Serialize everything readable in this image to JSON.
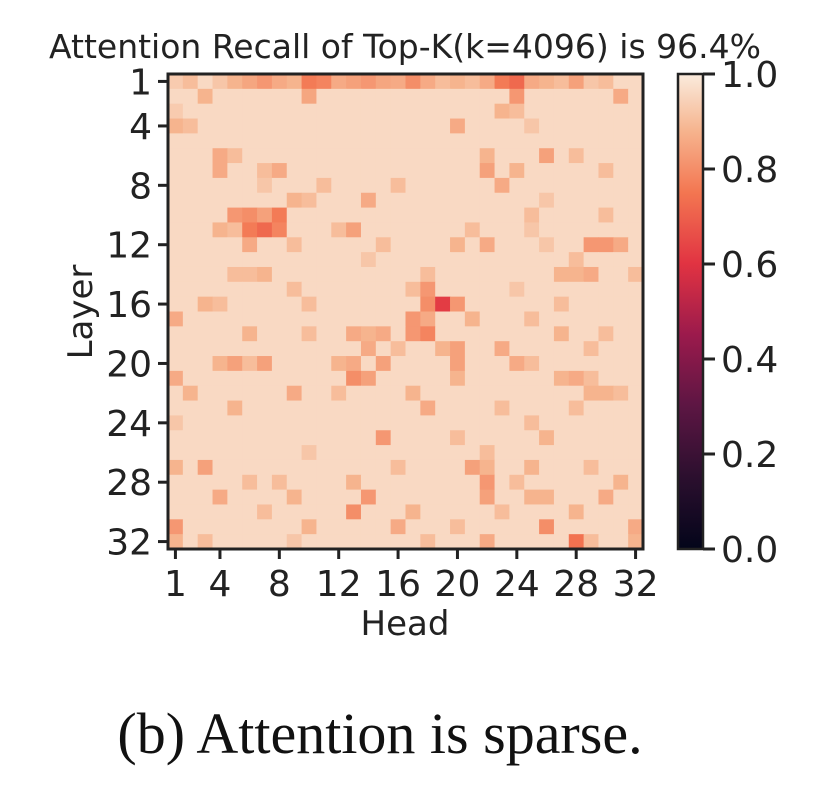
{
  "chart_data": {
    "type": "heatmap",
    "title": "Attention Recall of Top-K(k=4096) is 96.4%",
    "xlabel": "Head",
    "ylabel": "Layer",
    "x_ticks": [
      "1",
      "4",
      "8",
      "12",
      "16",
      "20",
      "24",
      "28",
      "32"
    ],
    "y_ticks": [
      "1",
      "4",
      "8",
      "12",
      "16",
      "20",
      "24",
      "28",
      "32"
    ],
    "colorbar": {
      "min": 0.0,
      "max": 1.0,
      "ticks": [
        "0.0",
        "0.2",
        "0.4",
        "0.6",
        "0.8",
        "1.0"
      ],
      "colormap": "rocket"
    },
    "n_rows": 32,
    "n_cols": 32,
    "default_value": 0.96,
    "overall_recall": 0.964,
    "cells": [
      [
        1,
        1,
        0.93
      ],
      [
        1,
        2,
        0.9
      ],
      [
        1,
        4,
        0.92
      ],
      [
        1,
        5,
        0.88
      ],
      [
        1,
        6,
        0.85
      ],
      [
        1,
        7,
        0.82
      ],
      [
        1,
        8,
        0.86
      ],
      [
        1,
        9,
        0.88
      ],
      [
        1,
        10,
        0.76
      ],
      [
        1,
        11,
        0.78
      ],
      [
        1,
        12,
        0.86
      ],
      [
        1,
        13,
        0.84
      ],
      [
        1,
        14,
        0.82
      ],
      [
        1,
        15,
        0.85
      ],
      [
        1,
        16,
        0.86
      ],
      [
        1,
        17,
        0.8
      ],
      [
        1,
        18,
        0.86
      ],
      [
        1,
        19,
        0.9
      ],
      [
        1,
        20,
        0.88
      ],
      [
        1,
        21,
        0.9
      ],
      [
        1,
        22,
        0.86
      ],
      [
        1,
        23,
        0.76
      ],
      [
        1,
        24,
        0.72
      ],
      [
        1,
        25,
        0.86
      ],
      [
        1,
        26,
        0.88
      ],
      [
        1,
        27,
        0.9
      ],
      [
        1,
        28,
        0.84
      ],
      [
        1,
        29,
        0.92
      ],
      [
        1,
        30,
        0.9
      ],
      [
        2,
        3,
        0.88
      ],
      [
        2,
        10,
        0.85
      ],
      [
        2,
        24,
        0.82
      ],
      [
        2,
        31,
        0.86
      ],
      [
        3,
        23,
        0.88
      ],
      [
        3,
        24,
        0.9
      ],
      [
        3,
        1,
        0.93
      ],
      [
        4,
        1,
        0.88
      ],
      [
        4,
        2,
        0.9
      ],
      [
        4,
        20,
        0.86
      ],
      [
        4,
        25,
        0.92
      ],
      [
        6,
        4,
        0.86
      ],
      [
        6,
        5,
        0.9
      ],
      [
        6,
        22,
        0.88
      ],
      [
        6,
        26,
        0.84
      ],
      [
        6,
        28,
        0.9
      ],
      [
        7,
        4,
        0.86
      ],
      [
        7,
        7,
        0.9
      ],
      [
        7,
        8,
        0.86
      ],
      [
        7,
        22,
        0.84
      ],
      [
        7,
        24,
        0.88
      ],
      [
        7,
        30,
        0.9
      ],
      [
        8,
        7,
        0.92
      ],
      [
        8,
        11,
        0.9
      ],
      [
        8,
        16,
        0.9
      ],
      [
        8,
        23,
        0.86
      ],
      [
        9,
        9,
        0.88
      ],
      [
        9,
        10,
        0.9
      ],
      [
        9,
        14,
        0.86
      ],
      [
        9,
        26,
        0.92
      ],
      [
        10,
        5,
        0.82
      ],
      [
        10,
        6,
        0.8
      ],
      [
        10,
        7,
        0.84
      ],
      [
        10,
        8,
        0.76
      ],
      [
        10,
        25,
        0.9
      ],
      [
        10,
        30,
        0.9
      ],
      [
        11,
        4,
        0.88
      ],
      [
        11,
        5,
        0.9
      ],
      [
        11,
        6,
        0.76
      ],
      [
        11,
        7,
        0.72
      ],
      [
        11,
        8,
        0.78
      ],
      [
        11,
        12,
        0.9
      ],
      [
        11,
        13,
        0.84
      ],
      [
        11,
        21,
        0.9
      ],
      [
        11,
        25,
        0.92
      ],
      [
        12,
        6,
        0.86
      ],
      [
        12,
        9,
        0.9
      ],
      [
        12,
        15,
        0.9
      ],
      [
        12,
        20,
        0.88
      ],
      [
        12,
        22,
        0.86
      ],
      [
        12,
        26,
        0.92
      ],
      [
        12,
        29,
        0.82
      ],
      [
        12,
        30,
        0.82
      ],
      [
        12,
        31,
        0.86
      ],
      [
        13,
        14,
        0.92
      ],
      [
        13,
        28,
        0.9
      ],
      [
        14,
        5,
        0.9
      ],
      [
        14,
        6,
        0.9
      ],
      [
        14,
        7,
        0.88
      ],
      [
        14,
        18,
        0.9
      ],
      [
        14,
        27,
        0.88
      ],
      [
        14,
        28,
        0.88
      ],
      [
        14,
        29,
        0.86
      ],
      [
        14,
        32,
        0.9
      ],
      [
        15,
        18,
        0.82
      ],
      [
        15,
        17,
        0.9
      ],
      [
        15,
        9,
        0.9
      ],
      [
        15,
        24,
        0.92
      ],
      [
        16,
        18,
        0.8
      ],
      [
        16,
        19,
        0.62
      ],
      [
        16,
        20,
        0.82
      ],
      [
        16,
        3,
        0.88
      ],
      [
        16,
        4,
        0.9
      ],
      [
        16,
        10,
        0.9
      ],
      [
        16,
        27,
        0.9
      ],
      [
        17,
        1,
        0.86
      ],
      [
        17,
        17,
        0.82
      ],
      [
        17,
        18,
        0.86
      ],
      [
        17,
        21,
        0.88
      ],
      [
        17,
        25,
        0.9
      ],
      [
        18,
        13,
        0.86
      ],
      [
        18,
        17,
        0.82
      ],
      [
        18,
        18,
        0.78
      ],
      [
        18,
        6,
        0.88
      ],
      [
        18,
        10,
        0.9
      ],
      [
        18,
        14,
        0.88
      ],
      [
        18,
        15,
        0.86
      ],
      [
        18,
        27,
        0.88
      ],
      [
        18,
        30,
        0.9
      ],
      [
        19,
        14,
        0.86
      ],
      [
        19,
        16,
        0.9
      ],
      [
        19,
        19,
        0.88
      ],
      [
        19,
        20,
        0.84
      ],
      [
        19,
        23,
        0.86
      ],
      [
        19,
        29,
        0.9
      ],
      [
        20,
        4,
        0.88
      ],
      [
        20,
        5,
        0.84
      ],
      [
        20,
        6,
        0.9
      ],
      [
        20,
        7,
        0.84
      ],
      [
        20,
        12,
        0.88
      ],
      [
        20,
        13,
        0.86
      ],
      [
        20,
        15,
        0.84
      ],
      [
        20,
        20,
        0.84
      ],
      [
        20,
        24,
        0.86
      ],
      [
        20,
        25,
        0.9
      ],
      [
        21,
        1,
        0.86
      ],
      [
        21,
        13,
        0.8
      ],
      [
        21,
        14,
        0.84
      ],
      [
        21,
        20,
        0.88
      ],
      [
        21,
        27,
        0.88
      ],
      [
        21,
        28,
        0.86
      ],
      [
        21,
        29,
        0.9
      ],
      [
        22,
        2,
        0.88
      ],
      [
        22,
        9,
        0.86
      ],
      [
        22,
        12,
        0.9
      ],
      [
        22,
        17,
        0.88
      ],
      [
        22,
        29,
        0.88
      ],
      [
        22,
        30,
        0.88
      ],
      [
        22,
        31,
        0.9
      ],
      [
        23,
        5,
        0.88
      ],
      [
        23,
        18,
        0.86
      ],
      [
        23,
        23,
        0.9
      ],
      [
        23,
        28,
        0.9
      ],
      [
        24,
        1,
        0.92
      ],
      [
        24,
        25,
        0.9
      ],
      [
        25,
        15,
        0.82
      ],
      [
        25,
        20,
        0.9
      ],
      [
        25,
        26,
        0.88
      ],
      [
        26,
        10,
        0.92
      ],
      [
        26,
        22,
        0.9
      ],
      [
        27,
        1,
        0.88
      ],
      [
        27,
        3,
        0.84
      ],
      [
        27,
        16,
        0.9
      ],
      [
        27,
        21,
        0.84
      ],
      [
        27,
        22,
        0.88
      ],
      [
        27,
        25,
        0.88
      ],
      [
        27,
        29,
        0.9
      ],
      [
        28,
        6,
        0.9
      ],
      [
        28,
        8,
        0.9
      ],
      [
        28,
        13,
        0.88
      ],
      [
        28,
        22,
        0.82
      ],
      [
        28,
        24,
        0.9
      ],
      [
        28,
        31,
        0.88
      ],
      [
        29,
        4,
        0.86
      ],
      [
        29,
        9,
        0.88
      ],
      [
        29,
        14,
        0.82
      ],
      [
        29,
        22,
        0.84
      ],
      [
        29,
        25,
        0.88
      ],
      [
        29,
        26,
        0.88
      ],
      [
        29,
        30,
        0.86
      ],
      [
        30,
        7,
        0.9
      ],
      [
        30,
        13,
        0.8
      ],
      [
        30,
        17,
        0.88
      ],
      [
        30,
        23,
        0.9
      ],
      [
        30,
        28,
        0.88
      ],
      [
        31,
        1,
        0.82
      ],
      [
        31,
        10,
        0.88
      ],
      [
        31,
        16,
        0.86
      ],
      [
        31,
        20,
        0.9
      ],
      [
        31,
        26,
        0.8
      ],
      [
        31,
        32,
        0.86
      ],
      [
        32,
        1,
        0.88
      ],
      [
        32,
        3,
        0.9
      ],
      [
        32,
        9,
        0.92
      ],
      [
        32,
        18,
        0.9
      ],
      [
        32,
        22,
        0.86
      ],
      [
        32,
        28,
        0.74
      ],
      [
        32,
        29,
        0.9
      ],
      [
        32,
        32,
        0.88
      ]
    ]
  },
  "caption": "(b) Attention is sparse."
}
